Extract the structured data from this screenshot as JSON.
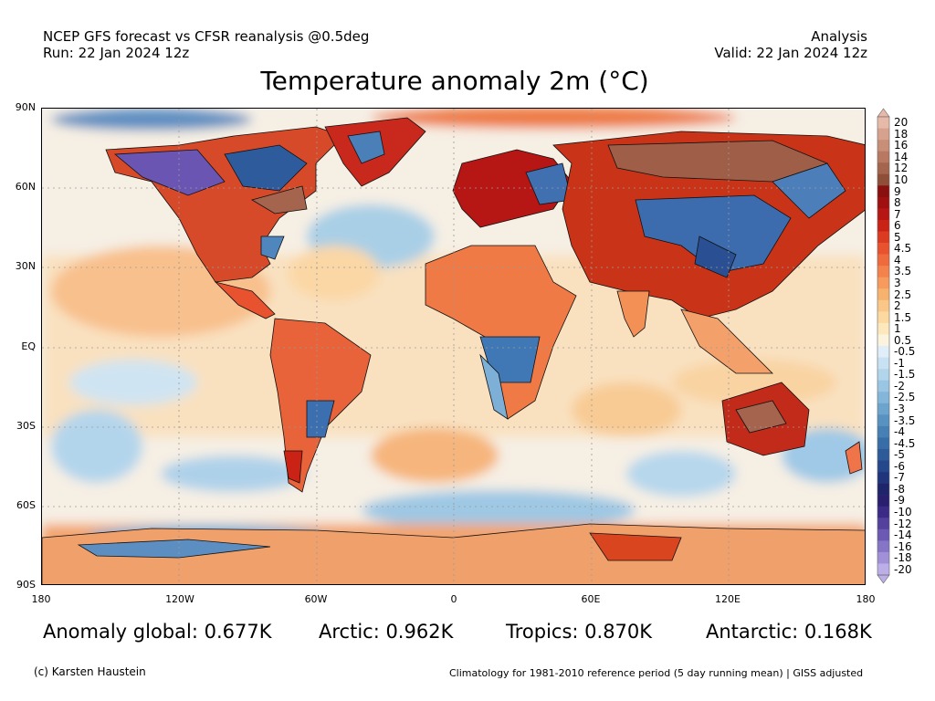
{
  "header": {
    "left_line1": "NCEP GFS forecast vs CFSR reanalysis @0.5deg",
    "left_line2": "Run: 22 Jan 2024 12z",
    "right_line1": "Analysis",
    "right_line2": "Valid: 22 Jan 2024 12z"
  },
  "title": "Temperature anomaly 2m (°C)",
  "map": {
    "lat_labels": [
      "90N",
      "60N",
      "30N",
      "EQ",
      "30S",
      "60S",
      "90S"
    ],
    "lon_labels": [
      "180",
      "120W",
      "60W",
      "0",
      "60E",
      "120E",
      "180"
    ],
    "projection": "equirectangular",
    "grid": "dotted",
    "ocean_neutral_color": "#f4f1ec"
  },
  "colorbar": {
    "labels": [
      "20",
      "18",
      "16",
      "14",
      "12",
      "10",
      "9",
      "8",
      "7",
      "6",
      "5",
      "4.5",
      "4",
      "3.5",
      "3",
      "2.5",
      "2",
      "1.5",
      "1",
      "0.5",
      "-0.5",
      "-1",
      "-1.5",
      "-2",
      "-2.5",
      "-3",
      "-3.5",
      "-4",
      "-4.5",
      "-5",
      "-6",
      "-7",
      "-8",
      "-9",
      "-10",
      "-12",
      "-14",
      "-16",
      "-18",
      "-20"
    ],
    "colors": [
      "#e6b9a8",
      "#d7a28d",
      "#c88e78",
      "#b87862",
      "#a5644e",
      "#8e4e38",
      "#8a0f0f",
      "#a11010",
      "#b71714",
      "#ca2316",
      "#dd3a22",
      "#e8522f",
      "#ef6a3c",
      "#f3824c",
      "#f69a5d",
      "#f8b26f",
      "#fac788",
      "#fcd9a0",
      "#fde8bd",
      "#fbf3dd",
      "#dfeef8",
      "#c9e2f3",
      "#b2d5ec",
      "#9ac6e3",
      "#83b6d9",
      "#6da4cd",
      "#5892c1",
      "#4680b5",
      "#376ea8",
      "#2d5b9a",
      "#25478b",
      "#20357b",
      "#1f256a",
      "#2a1e6e",
      "#3b2a86",
      "#53419d",
      "#6b59b4",
      "#8674c7",
      "#a190d8",
      "#bcaee7"
    ]
  },
  "stats": {
    "global": "Anomaly global: 0.677K",
    "arctic": "Arctic: 0.962K",
    "tropics": "Tropics: 0.870K",
    "antarctic": "Antarctic: 0.168K"
  },
  "footer": {
    "copyright": "(c) Karsten Haustein",
    "note": "Climatology for 1981-2010 reference period (5 day running mean) | GISS adjusted"
  }
}
